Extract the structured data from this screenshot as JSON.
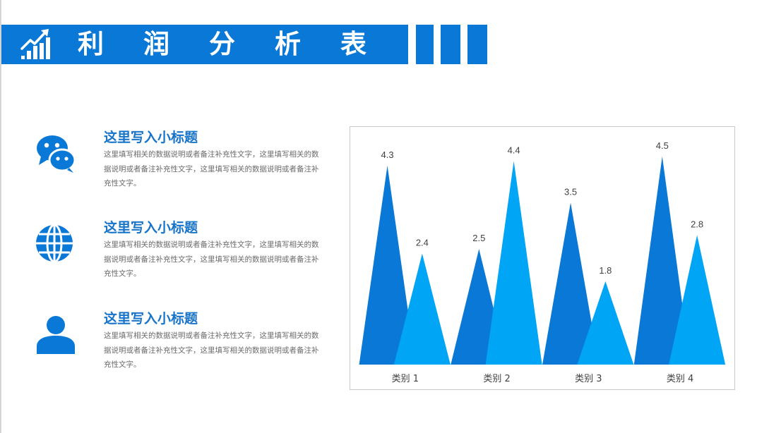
{
  "header": {
    "title": "利润分析表"
  },
  "items": [
    {
      "icon": "wechat-icon",
      "heading": "这里写入小标题",
      "text": "这里填写相关的数据说明或者备注补充性文字，这里填写相关的数据说明或者备注补充性文字，这里填写相关的数据说明或者备注补充性文字。"
    },
    {
      "icon": "globe-icon",
      "heading": "这里写入小标题",
      "text": "这里填写相关的数据说明或者备注补充性文字，这里填写相关的数据说明或者备注补充性文字，这里填写相关的数据说明或者备注补充性文字。"
    },
    {
      "icon": "user-icon",
      "heading": "这里写入小标题",
      "text": "这里填写相关的数据说明或者备注补充性文字，这里填写相关的数据说明或者备注补充性文字，这里填写相关的数据说明或者备注补充性文字。"
    }
  ],
  "colors": {
    "primary": "#0a78d6",
    "series1": "#0a78d6",
    "series2": "#00a6f5"
  },
  "chart_data": {
    "type": "bar",
    "style": "pointed-triangle",
    "categories": [
      "类别 1",
      "类别 2",
      "类别 3",
      "类别 4"
    ],
    "series": [
      {
        "values": [
          4.3,
          2.5,
          3.5,
          4.5
        ]
      },
      {
        "values": [
          2.4,
          4.4,
          1.8,
          2.8
        ]
      }
    ],
    "data_labels": true,
    "ylim": [
      0,
      5
    ],
    "grid": false,
    "legend": "none"
  }
}
